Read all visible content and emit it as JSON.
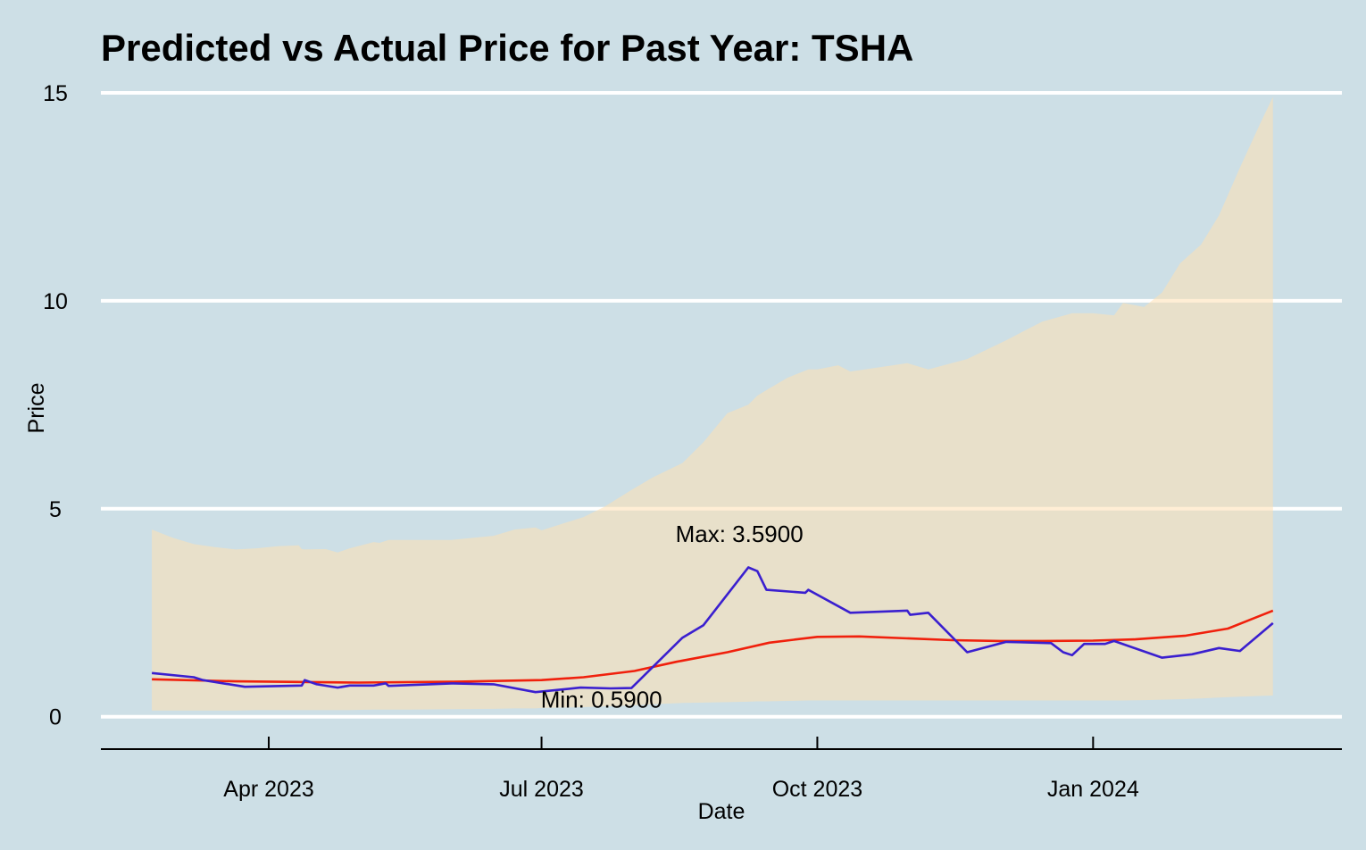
{
  "chart_data": {
    "type": "line",
    "title": "Predicted vs Actual Price for Past Year: TSHA",
    "xlabel": "Date",
    "ylabel": "Price",
    "xlim": [
      "2023-02-04",
      "2024-03-24"
    ],
    "ylim": [
      -0.5,
      15.3
    ],
    "y_ticks": [
      0,
      5,
      10,
      15
    ],
    "x_ticks": [
      {
        "date": "2023-04-01",
        "label": "Apr 2023"
      },
      {
        "date": "2023-07-01",
        "label": "Jul 2023"
      },
      {
        "date": "2023-10-01",
        "label": "Oct 2023"
      },
      {
        "date": "2024-01-01",
        "label": "Jan 2024"
      }
    ],
    "grid": "horizontal",
    "colors": {
      "background": "#cddfe6",
      "band": "#ffe0b2",
      "actual": "#3a1fcf",
      "predicted": "#f0200c",
      "grid": "#ffffff"
    },
    "series": [
      {
        "role": "actual",
        "x": [
          "2023-02-21",
          "2023-03-07",
          "2023-03-10",
          "2023-03-24",
          "2023-04-12",
          "2023-04-13",
          "2023-04-17",
          "2023-04-24",
          "2023-04-28",
          "2023-05-06",
          "2023-05-10",
          "2023-05-11",
          "2023-06-01",
          "2023-06-15",
          "2023-06-29",
          "2023-07-14",
          "2023-07-24",
          "2023-07-31",
          "2023-08-17",
          "2023-08-24",
          "2023-09-08",
          "2023-09-11",
          "2023-09-14",
          "2023-09-27",
          "2023-09-28",
          "2023-10-12",
          "2023-10-31",
          "2023-11-01",
          "2023-11-07",
          "2023-11-20",
          "2023-12-03",
          "2023-12-18",
          "2023-12-22",
          "2023-12-25",
          "2023-12-29",
          "2024-01-05",
          "2024-01-08",
          "2024-01-24",
          "2024-02-03",
          "2024-02-12",
          "2024-02-19",
          "2024-03-01"
        ],
        "y": [
          1.05,
          0.95,
          0.88,
          0.72,
          0.75,
          0.88,
          0.78,
          0.7,
          0.75,
          0.75,
          0.8,
          0.74,
          0.8,
          0.78,
          0.59,
          0.7,
          0.68,
          0.69,
          1.9,
          2.2,
          3.59,
          3.5,
          3.05,
          2.98,
          3.05,
          2.5,
          2.55,
          2.45,
          2.5,
          1.55,
          1.8,
          1.77,
          1.55,
          1.48,
          1.75,
          1.75,
          1.82,
          1.42,
          1.5,
          1.65,
          1.58,
          2.25
        ]
      },
      {
        "role": "predicted",
        "x": [
          "2023-02-21",
          "2023-03-21",
          "2023-05-01",
          "2023-06-01",
          "2023-07-01",
          "2023-07-15",
          "2023-08-01",
          "2023-08-15",
          "2023-09-01",
          "2023-09-15",
          "2023-10-01",
          "2023-10-15",
          "2023-11-01",
          "2023-11-15",
          "2023-12-01",
          "2023-12-15",
          "2024-01-01",
          "2024-01-15",
          "2024-02-01",
          "2024-02-15",
          "2024-03-01"
        ],
        "y": [
          0.9,
          0.85,
          0.82,
          0.84,
          0.88,
          0.95,
          1.1,
          1.32,
          1.55,
          1.78,
          1.92,
          1.93,
          1.88,
          1.84,
          1.82,
          1.82,
          1.83,
          1.86,
          1.95,
          2.12,
          2.55
        ]
      },
      {
        "role": "band",
        "x": [
          "2023-02-21",
          "2023-02-28",
          "2023-03-07",
          "2023-03-14",
          "2023-03-21",
          "2023-03-28",
          "2023-04-04",
          "2023-04-11",
          "2023-04-12",
          "2023-04-13",
          "2023-04-20",
          "2023-04-24",
          "2023-04-28",
          "2023-05-06",
          "2023-05-08",
          "2023-05-11",
          "2023-05-18",
          "2023-06-01",
          "2023-06-15",
          "2023-06-22",
          "2023-06-29",
          "2023-07-01",
          "2023-07-15",
          "2023-07-22",
          "2023-07-31",
          "2023-08-07",
          "2023-08-17",
          "2023-08-24",
          "2023-09-01",
          "2023-09-08",
          "2023-09-11",
          "2023-09-14",
          "2023-09-21",
          "2023-09-28",
          "2023-10-01",
          "2023-10-08",
          "2023-10-12",
          "2023-10-31",
          "2023-11-07",
          "2023-11-20",
          "2023-12-03",
          "2023-12-15",
          "2023-12-25",
          "2024-01-01",
          "2024-01-08",
          "2024-01-11",
          "2024-01-18",
          "2024-01-24",
          "2024-01-30",
          "2024-02-06",
          "2024-02-12",
          "2024-02-19",
          "2024-02-26",
          "2024-03-01"
        ],
        "upper": [
          4.5,
          4.3,
          4.15,
          4.08,
          4.02,
          4.05,
          4.1,
          4.12,
          4.03,
          4.02,
          4.03,
          3.95,
          4.05,
          4.2,
          4.18,
          4.25,
          4.25,
          4.25,
          4.35,
          4.5,
          4.55,
          4.48,
          4.8,
          5.05,
          5.45,
          5.75,
          6.1,
          6.6,
          7.3,
          7.5,
          7.72,
          7.85,
          8.15,
          8.35,
          8.35,
          8.45,
          8.3,
          8.5,
          8.35,
          8.6,
          9.05,
          9.5,
          9.7,
          9.7,
          9.65,
          9.95,
          9.85,
          10.2,
          10.9,
          11.35,
          12.05,
          13.2,
          14.3,
          14.9
        ],
        "lower": [
          0.15,
          0.15,
          0.15,
          0.15,
          0.15,
          0.16,
          0.16,
          0.16,
          0.16,
          0.16,
          0.16,
          0.16,
          0.16,
          0.17,
          0.17,
          0.17,
          0.17,
          0.18,
          0.19,
          0.2,
          0.2,
          0.21,
          0.23,
          0.25,
          0.27,
          0.3,
          0.33,
          0.34,
          0.35,
          0.36,
          0.37,
          0.37,
          0.38,
          0.39,
          0.39,
          0.39,
          0.39,
          0.39,
          0.39,
          0.39,
          0.39,
          0.39,
          0.39,
          0.39,
          0.39,
          0.39,
          0.4,
          0.41,
          0.42,
          0.44,
          0.46,
          0.48,
          0.5,
          0.51
        ]
      }
    ],
    "annotations": [
      {
        "text": "Max: 3.5900",
        "x": "2023-09-05",
        "y": 4.2
      },
      {
        "text": "Min: 0.5900",
        "x": "2023-07-21",
        "y": 0.22
      }
    ]
  }
}
